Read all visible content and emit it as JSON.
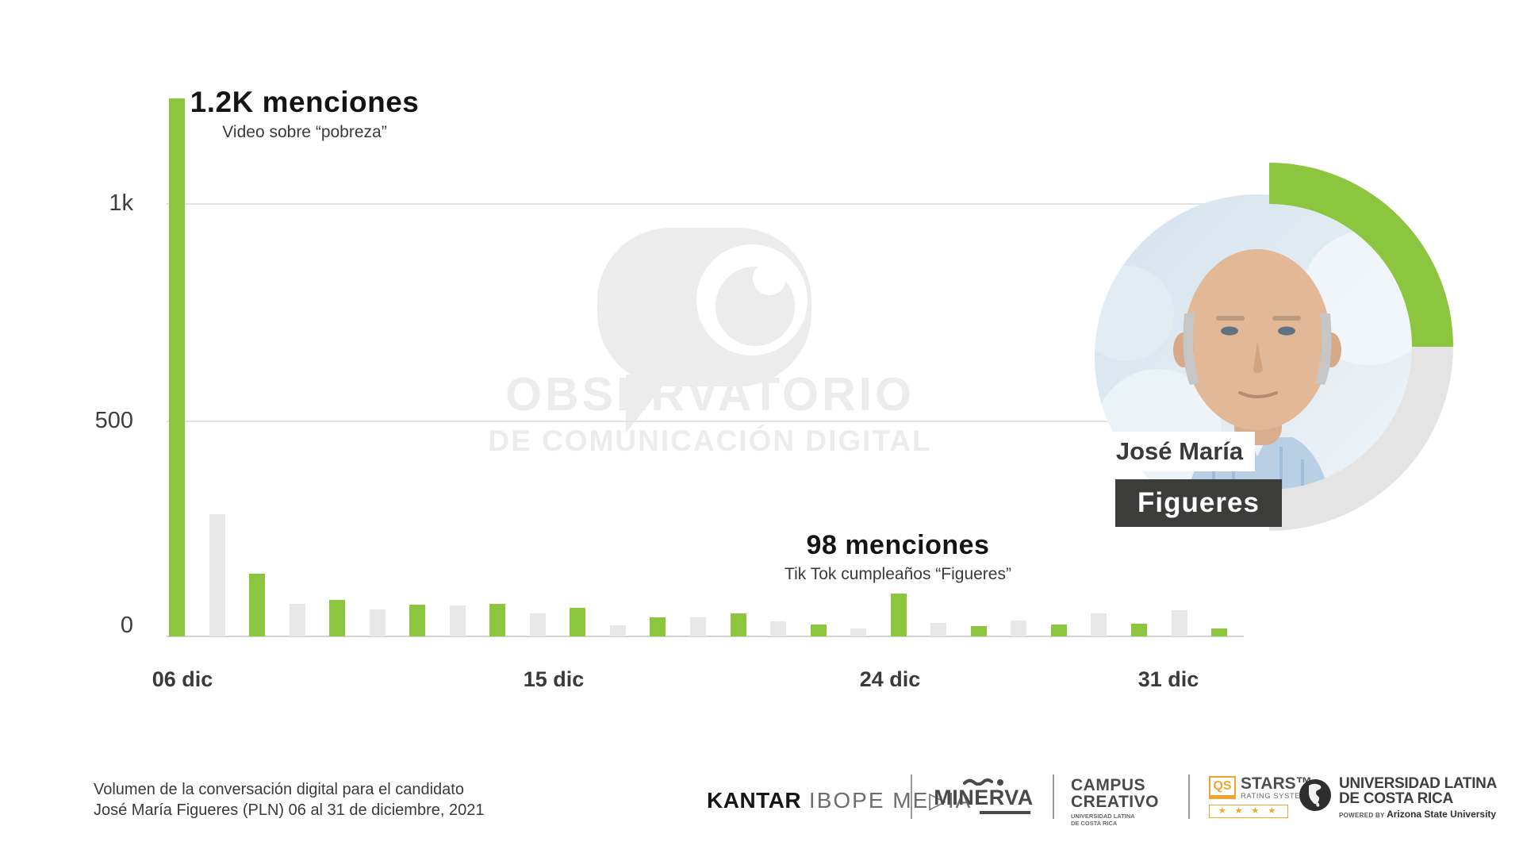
{
  "chart_data": {
    "type": "bar",
    "description": "Daily volume of digital conversation mentions, alternating green/gray bars",
    "values": [
      1237,
      281,
      144,
      75,
      84,
      62,
      73,
      71,
      75,
      53,
      66,
      26,
      44,
      44,
      53,
      35,
      27,
      18,
      98,
      31,
      24,
      36,
      27,
      53,
      29,
      60,
      18
    ],
    "color_pattern": [
      "green",
      "gray"
    ],
    "colors": {
      "green": "#8CC63F",
      "gray": "#E7E7E7"
    },
    "ylim": [
      0,
      1270
    ],
    "grid": "horizontal lines at 500 and 1k",
    "legend": "none",
    "y_ticks": [
      {
        "label": "1k",
        "value": 1000
      },
      {
        "label": "500",
        "value": 500
      },
      {
        "label": "0",
        "value": 0
      }
    ],
    "x_ticks": [
      {
        "label": "06 dic",
        "bar_index": 0
      },
      {
        "label": "15 dic",
        "bar_index": 9
      },
      {
        "label": "24 dic",
        "bar_index": 18
      },
      {
        "label": "31 dic",
        "bar_index": 25
      }
    ],
    "annotations": [
      {
        "title": "1.2K menciones",
        "subtitle": "Video sobre “pobreza”",
        "bar_index": 0
      },
      {
        "title": "98 menciones",
        "subtitle": "Tik Tok cumpleaños “Figueres”",
        "bar_index": 18
      }
    ]
  },
  "watermark": {
    "line1": "OBSERVATORIO",
    "line2": "DE COMUNICACIÓN DIGITAL"
  },
  "candidate": {
    "first_name": "José María",
    "last_name": "Figueres"
  },
  "footer": {
    "caption_line1": "Volumen de la conversación digital para el candidato",
    "caption_line2": "José María Figueres (PLN) 06 al 31 de diciembre, 2021",
    "logos": {
      "kantar_primary": "KANTAR",
      "kantar_secondary": " IBOPE ME▷IA",
      "minerva": "MINERVA",
      "campus_line1": "CAMPUS",
      "campus_line2": "CREATIVO",
      "campus_sub1": "UNIVERSIDAD LATINA",
      "campus_sub2": "DE COSTA RICA",
      "qs_abbr": "QS",
      "qs_name": "STARS™",
      "qs_sub": "RATING SYSTEM",
      "qs_stars": "★ ★ ★ ★",
      "uni_line1": "UNIVERSIDAD LATINA",
      "uni_line2": "DE COSTA RICA",
      "uni_powered_label": "POWERED BY ",
      "uni_powered_by": "Arizona State University"
    }
  }
}
